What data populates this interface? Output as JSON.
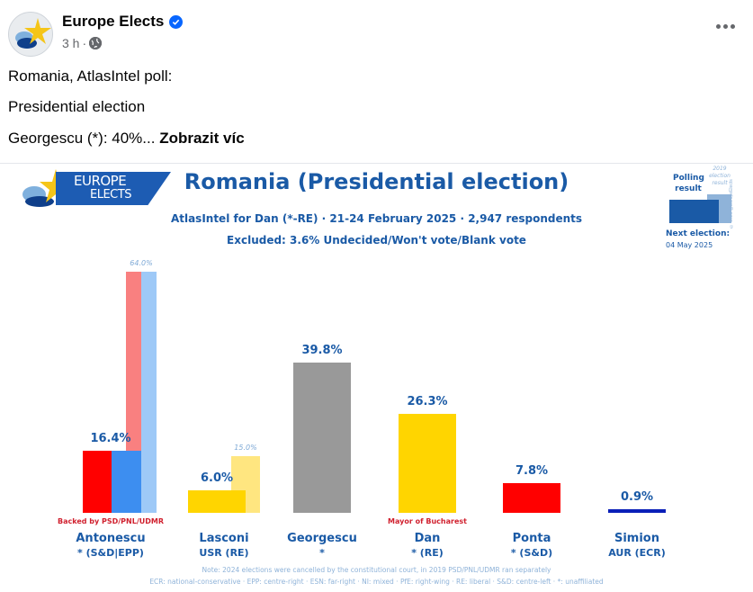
{
  "post": {
    "author": "Europe Elects",
    "verified": true,
    "time": "3 h",
    "separator": "·",
    "visibility_icon": "globe-icon",
    "more_icon": "more-options-icon",
    "text_lines": [
      "Romania, AtlasIntel poll:",
      "Presidential election",
      "Georgescu (*): 40%..."
    ],
    "see_more": "Zobrazit víc"
  },
  "chart_image": {
    "logo_line1": "EUROPE",
    "logo_line2": "ELECTS",
    "legend": {
      "polling_label": "Polling result",
      "election_2019_label": "2019 election result",
      "copyright": "© 2025 @EuropeElects",
      "next_election_label": "Next election:",
      "next_election_date": "04 May 2025",
      "colors": {
        "polling": "#1a5aa6",
        "election_2019": "#8fb3d9"
      }
    },
    "note_line1": "Note: 2024 elections were cancelled by the constitutional court, in 2019 PSD/PNL/UDMR ran separately",
    "note_line2": "ECR: national-conservative · EPP: centre-right · ESN: far-right · NI: mixed · PfE: right-wing · RE: liberal · S&D: centre-left · *: unaffiliated"
  },
  "chart_data": {
    "type": "bar",
    "title": "Romania (Presidential election)",
    "subtitle": "AtlasIntel for Dan (*-RE) · 21-24 February 2025 · 2,947 respondents",
    "subtitle2": "Excluded: 3.6% Undecided/Won't vote/Blank vote",
    "xlabel": "",
    "ylabel": "",
    "ylim": [
      0,
      64
    ],
    "grid": false,
    "legend_position": "top-right",
    "categories": [
      "Antonescu",
      "Lasconi",
      "Georgescu",
      "Dan",
      "Ponta",
      "Simion"
    ],
    "parties": [
      "* (S&D|EPP)",
      "USR (RE)",
      "*",
      "* (RE)",
      "* (S&D)",
      "AUR (ECR)"
    ],
    "series": [
      {
        "name": "Polling result",
        "values": [
          16.4,
          6.0,
          39.8,
          26.3,
          7.8,
          0.9
        ],
        "labels": [
          "16.4%",
          "6.0%",
          "39.8%",
          "26.3%",
          "7.8%",
          "0.9%"
        ]
      },
      {
        "name": "2019 election result",
        "values": [
          64.0,
          15.0,
          null,
          null,
          null,
          null
        ],
        "labels": [
          "64.0%",
          "15.0%",
          "",
          "",
          "",
          ""
        ]
      }
    ],
    "antonescu_split": {
      "poll_colors": [
        "#ff0000",
        "#3d8ef0"
      ],
      "election_2019_colors": [
        "#f98080",
        "#9ec9f7"
      ]
    },
    "bar_colors": [
      "#3d8ef0",
      "#ffd500",
      "#999999",
      "#ffd500",
      "#ff0000",
      "#0a1fb8"
    ],
    "bar_colors_2019": [
      "#9ec9f7",
      "#ffe680",
      null,
      null,
      null,
      null
    ],
    "annotations": [
      {
        "category": "Antonescu",
        "text": "Backed by PSD/PNL/UDMR"
      },
      {
        "category": "Dan",
        "text": "Mayor of Bucharest"
      }
    ]
  }
}
